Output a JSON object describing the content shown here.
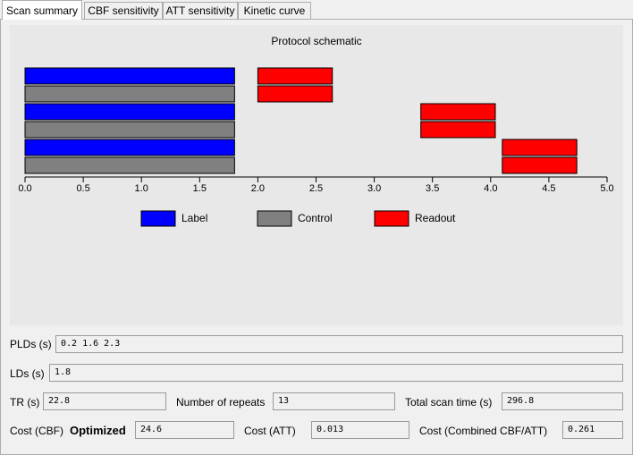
{
  "tabs": [
    {
      "label": "Scan summary"
    },
    {
      "label": "CBF sensitivity"
    },
    {
      "label": "ATT sensitivity"
    },
    {
      "label": "Kinetic curve"
    }
  ],
  "chart_data": {
    "type": "bar",
    "title": "Protocol schematic",
    "xlim": [
      0,
      5
    ],
    "ticks": [
      "0.0",
      "0.5",
      "1.0",
      "1.5",
      "2.0",
      "2.5",
      "3.0",
      "3.5",
      "4.0",
      "4.5",
      "5.0"
    ],
    "tick_values": [
      0,
      0.5,
      1,
      1.5,
      2,
      2.5,
      3,
      3.5,
      4,
      4.5,
      5
    ],
    "rows": [
      {
        "name": "Label",
        "segments": [
          {
            "kind": "label",
            "start": 0,
            "end": 1.8
          },
          {
            "kind": "readout",
            "start": 2.0,
            "end": 2.64
          }
        ]
      },
      {
        "name": "Control",
        "segments": [
          {
            "kind": "control",
            "start": 0,
            "end": 1.8
          },
          {
            "kind": "readout",
            "start": 2.0,
            "end": 2.64
          }
        ]
      },
      {
        "name": "Label",
        "segments": [
          {
            "kind": "label",
            "start": 0,
            "end": 1.8
          },
          {
            "kind": "readout",
            "start": 3.4,
            "end": 4.04
          }
        ]
      },
      {
        "name": "Control",
        "segments": [
          {
            "kind": "control",
            "start": 0,
            "end": 1.8
          },
          {
            "kind": "readout",
            "start": 3.4,
            "end": 4.04
          }
        ]
      },
      {
        "name": "Label",
        "segments": [
          {
            "kind": "label",
            "start": 0,
            "end": 1.8
          },
          {
            "kind": "readout",
            "start": 4.1,
            "end": 4.74
          }
        ]
      },
      {
        "name": "Control",
        "segments": [
          {
            "kind": "control",
            "start": 0,
            "end": 1.8
          },
          {
            "kind": "readout",
            "start": 4.1,
            "end": 4.74
          }
        ]
      }
    ],
    "legend": [
      {
        "label": "Label",
        "color": "#0000ff"
      },
      {
        "label": "Control",
        "color": "#808080"
      },
      {
        "label": "Readout",
        "color": "#ff0000"
      }
    ],
    "colors": {
      "label": "#0000ff",
      "control": "#808080",
      "readout": "#ff0000"
    }
  },
  "fields": {
    "plds_label": "PLDs (s)",
    "plds_value": "0.2 1.6 2.3",
    "lds_label": "LDs (s)",
    "lds_value": "1.8",
    "tr_label": "TR (s)",
    "tr_value": "22.8",
    "repeats_label": "Number of repeats",
    "repeats_value": "13",
    "scantime_label": "Total scan time (s)",
    "scantime_value": "296.8",
    "cost_cbf_label": "Cost (CBF)",
    "optimized_label": "Optimized",
    "cost_cbf_value": "24.6",
    "cost_att_label": "Cost (ATT)",
    "cost_att_value": "0.013",
    "cost_comb_label": "Cost (Combined CBF/ATT)",
    "cost_comb_value": "0.261"
  }
}
